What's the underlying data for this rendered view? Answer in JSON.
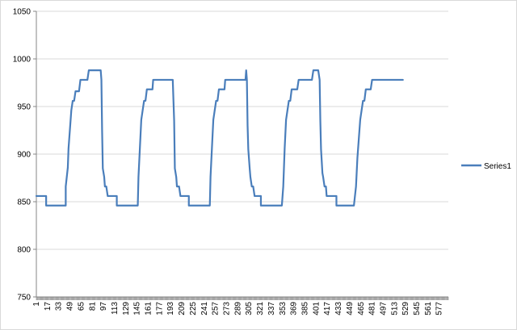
{
  "chart_data": {
    "type": "line",
    "title": "",
    "xlabel": "",
    "ylabel": "",
    "ylim": [
      750,
      1050
    ],
    "y_ticks": [
      750,
      800,
      850,
      900,
      950,
      1000,
      1050
    ],
    "x_range": [
      1,
      590
    ],
    "x_tick_labels": [
      1,
      17,
      33,
      49,
      65,
      81,
      97,
      113,
      129,
      145,
      161,
      177,
      193,
      209,
      225,
      241,
      257,
      273,
      289,
      305,
      321,
      337,
      353,
      369,
      385,
      401,
      417,
      433,
      449,
      465,
      481,
      497,
      513,
      529,
      545,
      561,
      577
    ],
    "gridlines": "horizontal",
    "legend_position": "right",
    "series_color": "#4a7ebb",
    "series": [
      {
        "name": "Series1",
        "points": [
          [
            1,
            856
          ],
          [
            15,
            856
          ],
          [
            15,
            846
          ],
          [
            43,
            846
          ],
          [
            43,
            866
          ],
          [
            46,
            886
          ],
          [
            47,
            906
          ],
          [
            49,
            926
          ],
          [
            51,
            946
          ],
          [
            53,
            956
          ],
          [
            55,
            956
          ],
          [
            57,
            966
          ],
          [
            62,
            966
          ],
          [
            64,
            978
          ],
          [
            74,
            978
          ],
          [
            76,
            988
          ],
          [
            93,
            988
          ],
          [
            94,
            978
          ],
          [
            95,
            925
          ],
          [
            96,
            885
          ],
          [
            98,
            876
          ],
          [
            99,
            866
          ],
          [
            101,
            866
          ],
          [
            103,
            856
          ],
          [
            116,
            856
          ],
          [
            116,
            846
          ],
          [
            146,
            846
          ],
          [
            147,
            876
          ],
          [
            149,
            906
          ],
          [
            151,
            936
          ],
          [
            153,
            946
          ],
          [
            155,
            956
          ],
          [
            157,
            956
          ],
          [
            159,
            968
          ],
          [
            167,
            968
          ],
          [
            168,
            978
          ],
          [
            196,
            978
          ],
          [
            198,
            935
          ],
          [
            199,
            885
          ],
          [
            201,
            876
          ],
          [
            202,
            866
          ],
          [
            205,
            866
          ],
          [
            207,
            856
          ],
          [
            219,
            856
          ],
          [
            219,
            846
          ],
          [
            249,
            846
          ],
          [
            250,
            876
          ],
          [
            252,
            906
          ],
          [
            254,
            936
          ],
          [
            256,
            946
          ],
          [
            258,
            956
          ],
          [
            260,
            956
          ],
          [
            262,
            968
          ],
          [
            270,
            968
          ],
          [
            271,
            978
          ],
          [
            300,
            978
          ],
          [
            301,
            988
          ],
          [
            302,
            978
          ],
          [
            303,
            930
          ],
          [
            304,
            905
          ],
          [
            306,
            885
          ],
          [
            307,
            876
          ],
          [
            309,
            866
          ],
          [
            311,
            866
          ],
          [
            313,
            856
          ],
          [
            322,
            856
          ],
          [
            322,
            846
          ],
          [
            352,
            846
          ],
          [
            354,
            866
          ],
          [
            356,
            906
          ],
          [
            358,
            936
          ],
          [
            360,
            946
          ],
          [
            362,
            956
          ],
          [
            364,
            956
          ],
          [
            366,
            968
          ],
          [
            374,
            968
          ],
          [
            376,
            978
          ],
          [
            395,
            978
          ],
          [
            397,
            988
          ],
          [
            404,
            988
          ],
          [
            406,
            978
          ],
          [
            407,
            935
          ],
          [
            408,
            905
          ],
          [
            410,
            880
          ],
          [
            411,
            876
          ],
          [
            413,
            866
          ],
          [
            415,
            866
          ],
          [
            416,
            856
          ],
          [
            430,
            856
          ],
          [
            430,
            846
          ],
          [
            455,
            846
          ],
          [
            458,
            866
          ],
          [
            460,
            896
          ],
          [
            462,
            916
          ],
          [
            464,
            936
          ],
          [
            466,
            946
          ],
          [
            468,
            956
          ],
          [
            470,
            956
          ],
          [
            472,
            968
          ],
          [
            479,
            968
          ],
          [
            481,
            978
          ],
          [
            525,
            978
          ]
        ]
      }
    ]
  }
}
